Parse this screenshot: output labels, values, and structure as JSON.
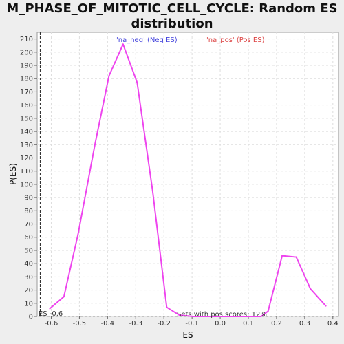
{
  "chart_data": {
    "type": "line",
    "title_lines": [
      "M_PHASE_OF_MITOTIC_CELL_CYCLE: Random ES",
      "distribution"
    ],
    "xlabel": "ES",
    "ylabel": "P(ES)",
    "xlim": [
      -0.65,
      0.42
    ],
    "ylim": [
      0,
      215
    ],
    "x_ticks": [
      -0.6,
      -0.5,
      -0.4,
      -0.3,
      -0.2,
      -0.1,
      0.0,
      0.1,
      0.2,
      0.3,
      0.4
    ],
    "x_tick_labels": [
      "-0.6",
      "-0.5",
      "-0.4",
      "-0.3",
      "-0.2",
      "-0.1",
      "0.0",
      "0.1",
      "0.2",
      "0.3",
      "0.4"
    ],
    "y_ticks": [
      0,
      10,
      20,
      30,
      40,
      50,
      60,
      70,
      80,
      90,
      100,
      110,
      120,
      130,
      140,
      150,
      160,
      170,
      180,
      190,
      200,
      210
    ],
    "grid": true,
    "series": [
      {
        "color": "#ee44ee",
        "x": [
          -0.605,
          -0.555,
          -0.505,
          -0.445,
          -0.395,
          -0.345,
          -0.295,
          -0.24,
          -0.19,
          -0.145,
          -0.095,
          -0.045,
          0.005,
          0.055,
          0.105,
          0.145,
          0.17,
          0.22,
          0.27,
          0.32,
          0.375
        ],
        "y": [
          6,
          15,
          62,
          130,
          182,
          206,
          177,
          95,
          7,
          1,
          0,
          0,
          0,
          0,
          0,
          0,
          4,
          46,
          45,
          21,
          8
        ]
      }
    ],
    "legend": [
      {
        "label": "'na_neg' (Neg ES)",
        "color": "#4444dd",
        "placement": "top-left"
      },
      {
        "label": "'na_pos' (Pos ES)",
        "color": "#dd4444",
        "placement": "top-right"
      }
    ],
    "marker_line": {
      "x": -0.638,
      "label": "ES -0.6",
      "style": "dashed",
      "color": "#333333"
    },
    "annotation": "Sets with pos scores: 12%"
  }
}
